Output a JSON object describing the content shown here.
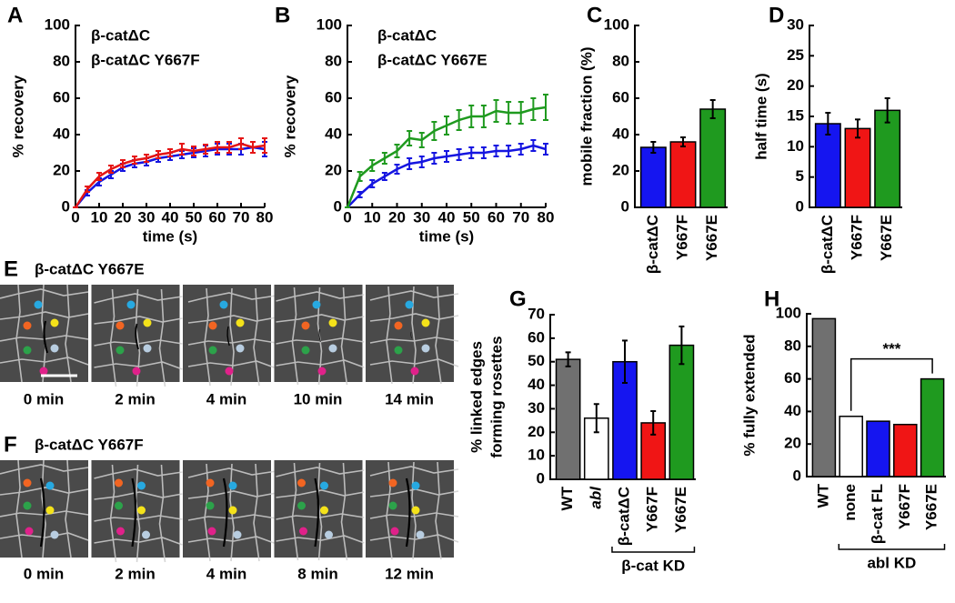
{
  "chart_data": [
    {
      "type": "line",
      "panel": "A",
      "xlabel": "time (s)",
      "ylabel": "% recovery",
      "x": [
        0,
        5,
        10,
        15,
        20,
        25,
        30,
        35,
        40,
        45,
        50,
        55,
        60,
        65,
        70,
        75,
        80
      ],
      "xlim": [
        0,
        80
      ],
      "xticks": [
        0,
        10,
        20,
        30,
        40,
        50,
        60,
        70,
        80
      ],
      "ylim": [
        0,
        100
      ],
      "yticks": [
        0,
        20,
        40,
        60,
        80,
        100
      ],
      "series": [
        {
          "name": "β-catΔC",
          "color": "#1515e0",
          "values": [
            0,
            8,
            14,
            18,
            22,
            24,
            25,
            27,
            28,
            29,
            30,
            31,
            32,
            32,
            32,
            33,
            32
          ],
          "errors": [
            0,
            1.5,
            2,
            2,
            2,
            2,
            2,
            2,
            2,
            2,
            2.5,
            3,
            3,
            3,
            3,
            3,
            4
          ]
        },
        {
          "name": "β-catΔC Y667F",
          "color": "#e51515",
          "values": [
            0,
            10,
            17,
            21,
            24,
            26,
            27,
            29,
            30,
            32,
            31,
            32,
            33,
            33,
            35,
            33,
            34
          ],
          "errors": [
            0,
            1.5,
            2,
            2,
            2,
            2,
            2,
            2,
            2,
            3,
            2.5,
            2.5,
            3,
            3,
            3,
            3,
            4
          ]
        }
      ]
    },
    {
      "type": "line",
      "panel": "B",
      "xlabel": "time (s)",
      "ylabel": "% recovery",
      "x": [
        0,
        5,
        10,
        15,
        20,
        25,
        30,
        35,
        40,
        45,
        50,
        55,
        60,
        65,
        70,
        75,
        80
      ],
      "xlim": [
        0,
        80
      ],
      "xticks": [
        0,
        10,
        20,
        30,
        40,
        50,
        60,
        70,
        80
      ],
      "ylim": [
        0,
        100
      ],
      "yticks": [
        0,
        20,
        40,
        60,
        80,
        100
      ],
      "series": [
        {
          "name": "β-catΔC",
          "color": "#1515e0",
          "values": [
            0,
            7,
            13,
            17,
            21,
            24,
            25,
            27,
            28,
            29,
            30,
            30,
            31,
            31,
            32,
            34,
            32
          ],
          "errors": [
            0,
            1.5,
            2,
            2,
            2.5,
            3,
            3,
            3,
            3,
            3,
            3,
            3,
            3,
            3,
            3,
            3,
            3
          ]
        },
        {
          "name": "β-catΔC Y667E",
          "color": "#1f9a1f",
          "values": [
            0,
            17,
            23,
            27,
            31,
            38,
            37,
            42,
            45,
            48,
            50,
            50,
            53,
            52,
            52,
            54,
            55
          ],
          "errors": [
            0,
            2.5,
            3,
            3,
            3.5,
            4,
            4,
            5,
            5,
            5.5,
            6,
            6,
            6,
            6,
            6,
            6,
            7
          ]
        }
      ]
    },
    {
      "type": "bar",
      "panel": "C",
      "ylabel": "mobile fraction (%)",
      "categories": [
        "β-catΔC",
        "Y667F",
        "Y667E"
      ],
      "values": [
        33,
        36,
        54
      ],
      "errors": [
        3,
        2.5,
        5
      ],
      "colors": [
        "#1515f0",
        "#f01515",
        "#1f9a1f"
      ],
      "ylim": [
        0,
        100
      ],
      "yticks": [
        0,
        20,
        40,
        60,
        80,
        100
      ]
    },
    {
      "type": "bar",
      "panel": "D",
      "ylabel": "half time (s)",
      "categories": [
        "β-catΔC",
        "Y667F",
        "Y667E"
      ],
      "values": [
        13.8,
        13,
        16
      ],
      "errors": [
        1.8,
        1.5,
        2
      ],
      "colors": [
        "#1515f0",
        "#f01515",
        "#1f9a1f"
      ],
      "ylim": [
        0,
        30
      ],
      "yticks": [
        0,
        5,
        10,
        15,
        20,
        25,
        30
      ]
    },
    {
      "type": "bar",
      "panel": "G",
      "ylabel": [
        "% linked edges",
        "forming rosettes"
      ],
      "categories": [
        "WT",
        "abl",
        "β-catΔC",
        "Y667F",
        "Y667E"
      ],
      "values": [
        51,
        26,
        50,
        24,
        57
      ],
      "errors": [
        3,
        6,
        9,
        5,
        8
      ],
      "colors": [
        "#707070",
        "#ffffff",
        "#1515f0",
        "#f01515",
        "#1f9a1f"
      ],
      "ylim": [
        0,
        70
      ],
      "yticks": [
        0,
        10,
        20,
        30,
        40,
        50,
        60,
        70
      ],
      "group_label": "β-cat KD"
    },
    {
      "type": "bar",
      "panel": "H",
      "ylabel": "% fully extended",
      "categories": [
        "WT",
        "none",
        "β-cat FL",
        "Y667F",
        "Y667E"
      ],
      "values": [
        97,
        37,
        34,
        32,
        60
      ],
      "colors": [
        "#707070",
        "#ffffff",
        "#1515f0",
        "#f01515",
        "#1f9a1f"
      ],
      "ylim": [
        0,
        100
      ],
      "yticks": [
        0,
        20,
        40,
        60,
        80,
        100
      ],
      "group_label": "abl KD",
      "annotation": "***"
    }
  ],
  "image_panels": [
    {
      "panel": "E",
      "title": "β-catΔC Y667E",
      "frames": [
        "0 min",
        "2 min",
        "4 min",
        "10 min",
        "14 min"
      ]
    },
    {
      "panel": "F",
      "title": "β-catΔC Y667F",
      "frames": [
        "0 min",
        "2 min",
        "4 min",
        "8 min",
        "12 min"
      ]
    }
  ]
}
